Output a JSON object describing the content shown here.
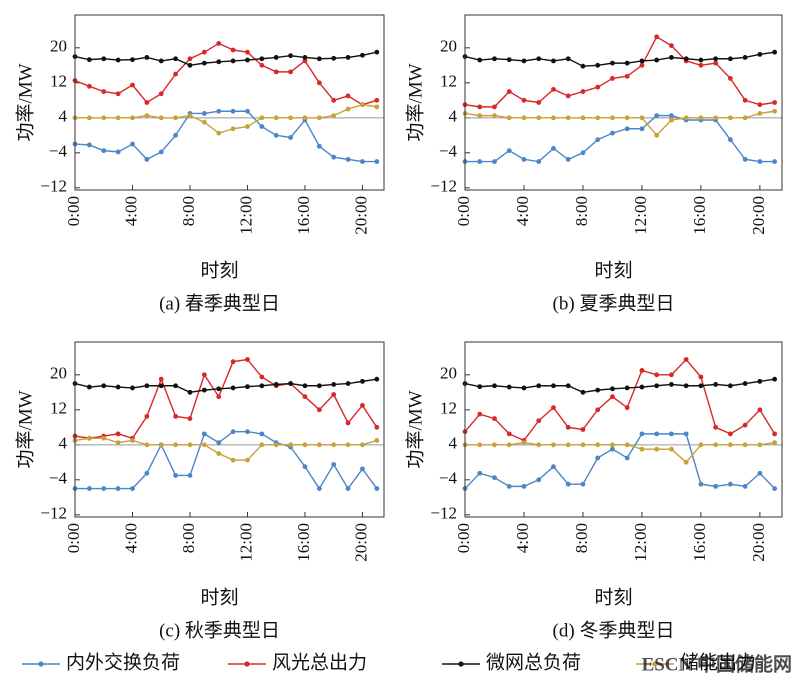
{
  "chart_data": [
    {
      "type": "line",
      "title": "(a) 春季典型日",
      "x_label": "时刻",
      "y_label": "功率/MW",
      "x": [
        0,
        1,
        2,
        3,
        4,
        5,
        6,
        7,
        8,
        9,
        10,
        11,
        12,
        13,
        14,
        15,
        16,
        17,
        18,
        19,
        20,
        21
      ],
      "xlim": [
        0,
        21.5
      ],
      "ylim": [
        -12.5,
        27.5
      ],
      "xticks": [
        {
          "value": 0,
          "label": "0:00"
        },
        {
          "value": 4,
          "label": "4:00"
        },
        {
          "value": 8,
          "label": "8:00"
        },
        {
          "value": 12,
          "label": "12:00"
        },
        {
          "value": 16,
          "label": "16:00"
        },
        {
          "value": 20,
          "label": "20:00"
        }
      ],
      "yticks": [
        {
          "value": -12,
          "label": "−12"
        },
        {
          "value": -4,
          "label": "−4"
        },
        4,
        12,
        20
      ],
      "hline": 4,
      "series": [
        {
          "name": "内外交换负荷",
          "color": "#4a86c8",
          "values": [
            -2,
            -2.2,
            -3.5,
            -3.8,
            -2,
            -5.5,
            -3.8,
            0,
            5,
            5,
            5.5,
            5.5,
            5.5,
            2,
            0,
            -0.5,
            3.5,
            -2.5,
            -5,
            -5.5,
            -6,
            -6
          ]
        },
        {
          "name": "风光总出力",
          "color": "#d8282a",
          "values": [
            12.5,
            11.2,
            10,
            9.5,
            11.5,
            7.5,
            9.5,
            14,
            17.5,
            19,
            21,
            19.5,
            19,
            16,
            14.5,
            14.5,
            17,
            12,
            8,
            9,
            7,
            8
          ]
        },
        {
          "name": "微网总负荷",
          "color": "#111111",
          "values": [
            18,
            17.3,
            17.5,
            17.2,
            17.3,
            17.8,
            17,
            17.5,
            16,
            16.5,
            16.8,
            17,
            17.2,
            17.5,
            17.8,
            18.2,
            17.8,
            17.5,
            17.6,
            17.8,
            18.3,
            19
          ]
        },
        {
          "name": "储能出力",
          "color": "#c9a13a",
          "values": [
            4,
            4,
            4,
            4,
            4,
            4.5,
            4,
            4,
            4.5,
            3,
            0.5,
            1.5,
            2,
            4,
            4,
            4,
            4,
            4,
            4.5,
            6,
            7,
            6.5
          ]
        }
      ]
    },
    {
      "type": "line",
      "title": "(b) 夏季典型日",
      "x_label": "时刻",
      "y_label": "功率/MW",
      "x": [
        0,
        1,
        2,
        3,
        4,
        5,
        6,
        7,
        8,
        9,
        10,
        11,
        12,
        13,
        14,
        15,
        16,
        17,
        18,
        19,
        20,
        21
      ],
      "xlim": [
        0,
        21.5
      ],
      "ylim": [
        -12.5,
        27.5
      ],
      "xticks": [
        {
          "value": 0,
          "label": "0:00"
        },
        {
          "value": 4,
          "label": "4:00"
        },
        {
          "value": 8,
          "label": "8:00"
        },
        {
          "value": 12,
          "label": "12:00"
        },
        {
          "value": 16,
          "label": "16:00"
        },
        {
          "value": 20,
          "label": "20:00"
        }
      ],
      "yticks": [
        {
          "value": -12,
          "label": "−12"
        },
        {
          "value": -4,
          "label": "−4"
        },
        4,
        12,
        20
      ],
      "hline": 4,
      "series": [
        {
          "color": "#4a86c8",
          "values": [
            -6,
            -6,
            -6,
            -3.5,
            -5.5,
            -6,
            -3,
            -5.5,
            -4,
            -1,
            0.5,
            1.5,
            1.5,
            4.5,
            4.5,
            3.5,
            3.5,
            3.5,
            -1,
            -5.5,
            -6,
            -6
          ]
        },
        {
          "color": "#d8282a",
          "values": [
            7,
            6.5,
            6.5,
            10,
            8,
            7.5,
            10.5,
            9,
            10,
            11,
            13,
            13.5,
            16,
            22.5,
            20.5,
            17,
            16,
            16.5,
            13,
            8,
            7,
            7.5
          ]
        },
        {
          "color": "#111111",
          "values": [
            18,
            17.2,
            17.5,
            17.3,
            17,
            17.5,
            17,
            17.5,
            15.8,
            16,
            16.5,
            16.5,
            17,
            17.2,
            17.8,
            17.5,
            17.2,
            17.5,
            17.5,
            17.8,
            18.5,
            19
          ]
        },
        {
          "color": "#c9a13a",
          "values": [
            5,
            4.5,
            4.5,
            4,
            4,
            4,
            4,
            4,
            4,
            4,
            4,
            4,
            4,
            0,
            3.5,
            4,
            4,
            4,
            4,
            4,
            5,
            5.5
          ]
        }
      ]
    },
    {
      "type": "line",
      "title": "(c) 秋季典型日",
      "x_label": "时刻",
      "y_label": "功率/MW",
      "x": [
        0,
        1,
        2,
        3,
        4,
        5,
        6,
        7,
        8,
        9,
        10,
        11,
        12,
        13,
        14,
        15,
        16,
        17,
        18,
        19,
        20,
        21
      ],
      "xlim": [
        0,
        21.5
      ],
      "ylim": [
        -12.5,
        27.5
      ],
      "xticks": [
        {
          "value": 0,
          "label": "0:00"
        },
        {
          "value": 4,
          "label": "4:00"
        },
        {
          "value": 8,
          "label": "8:00"
        },
        {
          "value": 12,
          "label": "12:00"
        },
        {
          "value": 16,
          "label": "16:00"
        },
        {
          "value": 20,
          "label": "20:00"
        }
      ],
      "yticks": [
        {
          "value": -12,
          "label": "−12"
        },
        {
          "value": -4,
          "label": "−4"
        },
        4,
        12,
        20
      ],
      "hline": 4,
      "series": [
        {
          "color": "#4a86c8",
          "values": [
            -6,
            -6,
            -6,
            -6,
            -6,
            -2.5,
            4,
            -3,
            -3,
            6.5,
            4.5,
            7,
            7,
            6.5,
            4.5,
            3.5,
            -1,
            -6,
            -0.5,
            -6,
            -1.5,
            -6
          ]
        },
        {
          "color": "#d8282a",
          "values": [
            6,
            5.5,
            6,
            6.5,
            5.5,
            10.5,
            19,
            10.5,
            10,
            20,
            15,
            23,
            23.5,
            19.5,
            17.5,
            18,
            15,
            12,
            15.5,
            9,
            13,
            8
          ]
        },
        {
          "color": "#111111",
          "values": [
            18,
            17.2,
            17.5,
            17.2,
            17,
            17.5,
            17.5,
            17.5,
            16,
            16.5,
            16.8,
            17,
            17.3,
            17.5,
            17.8,
            18,
            17.5,
            17.5,
            17.8,
            18,
            18.5,
            19
          ]
        },
        {
          "color": "#c9a13a",
          "values": [
            5,
            5.5,
            5.5,
            4.5,
            5,
            4,
            4,
            4,
            4,
            4,
            2,
            0.5,
            0.5,
            4,
            4,
            4,
            4,
            4,
            4,
            4,
            4,
            5
          ]
        }
      ]
    },
    {
      "type": "line",
      "title": "(d) 冬季典型日",
      "x_label": "时刻",
      "y_label": "功率/MW",
      "x": [
        0,
        1,
        2,
        3,
        4,
        5,
        6,
        7,
        8,
        9,
        10,
        11,
        12,
        13,
        14,
        15,
        16,
        17,
        18,
        19,
        20,
        21
      ],
      "xlim": [
        0,
        21.5
      ],
      "ylim": [
        -12.5,
        27.5
      ],
      "xticks": [
        {
          "value": 0,
          "label": "0:00"
        },
        {
          "value": 4,
          "label": "4:00"
        },
        {
          "value": 8,
          "label": "8:00"
        },
        {
          "value": 12,
          "label": "12:00"
        },
        {
          "value": 16,
          "label": "16:00"
        },
        {
          "value": 20,
          "label": "20:00"
        }
      ],
      "yticks": [
        {
          "value": -12,
          "label": "−12"
        },
        {
          "value": -4,
          "label": "−4"
        },
        4,
        12,
        20
      ],
      "hline": 4,
      "series": [
        {
          "color": "#4a86c8",
          "values": [
            -6,
            -2.5,
            -3.5,
            -5.5,
            -5.5,
            -4,
            -1,
            -5,
            -5,
            1,
            3,
            1,
            6.5,
            6.5,
            6.5,
            6.5,
            -5,
            -5.5,
            -5,
            -5.5,
            -2.5,
            -6
          ]
        },
        {
          "color": "#d8282a",
          "values": [
            7,
            11,
            10,
            6.5,
            5,
            9.5,
            12.5,
            8,
            7.5,
            12,
            15,
            12.5,
            21,
            20,
            20,
            23.5,
            19.5,
            8,
            6.5,
            8.5,
            12,
            6.5
          ]
        },
        {
          "color": "#111111",
          "values": [
            18,
            17.3,
            17.5,
            17.2,
            17,
            17.5,
            17.5,
            17.5,
            16,
            16.5,
            16.8,
            17,
            17.2,
            17.5,
            17.8,
            17.5,
            17.5,
            17.8,
            17.5,
            18,
            18.5,
            19
          ]
        },
        {
          "color": "#c9a13a",
          "values": [
            4,
            4,
            4,
            4,
            4.5,
            4,
            4,
            4,
            4,
            4,
            4,
            4,
            3,
            3,
            3,
            0,
            4,
            4,
            4,
            4,
            4,
            4.5
          ]
        }
      ]
    }
  ],
  "watermark": "ESCN 中国储能网"
}
